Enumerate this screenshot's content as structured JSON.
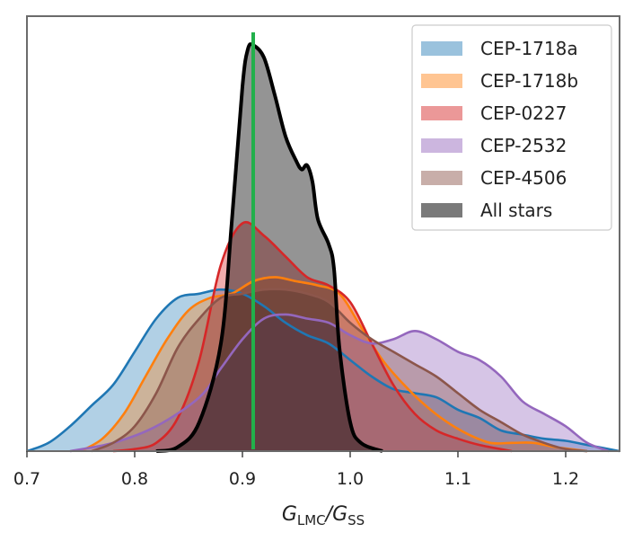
{
  "chart_data": {
    "type": "area",
    "title": "",
    "xlabel": "G",
    "xlabel_sub1": "LMC",
    "xlabel_mid": "/G",
    "xlabel_sub2": "SS",
    "ylabel": "",
    "xlim": [
      0.7,
      1.25
    ],
    "ylim": [
      0,
      1.05
    ],
    "x_ticks": [
      0.7,
      0.8,
      0.9,
      1.0,
      1.1,
      1.2
    ],
    "x_tick_labels": [
      "0.7",
      "0.8",
      "0.9",
      "1.0",
      "1.1",
      "1.2"
    ],
    "grid": false,
    "legend_position": "top-right",
    "reference_line": {
      "x": 0.91,
      "color": "#22b04b"
    },
    "series": [
      {
        "name": "CEP-1718a",
        "color": "#1f77b4",
        "fill_opacity": 0.35,
        "points": [
          [
            0.7,
            0.0
          ],
          [
            0.72,
            0.02
          ],
          [
            0.74,
            0.06
          ],
          [
            0.76,
            0.11
          ],
          [
            0.78,
            0.16
          ],
          [
            0.8,
            0.24
          ],
          [
            0.82,
            0.32
          ],
          [
            0.84,
            0.37
          ],
          [
            0.86,
            0.38
          ],
          [
            0.88,
            0.39
          ],
          [
            0.9,
            0.38
          ],
          [
            0.92,
            0.35
          ],
          [
            0.94,
            0.31
          ],
          [
            0.96,
            0.28
          ],
          [
            0.98,
            0.26
          ],
          [
            1.0,
            0.22
          ],
          [
            1.02,
            0.18
          ],
          [
            1.04,
            0.15
          ],
          [
            1.06,
            0.14
          ],
          [
            1.08,
            0.13
          ],
          [
            1.1,
            0.1
          ],
          [
            1.12,
            0.08
          ],
          [
            1.14,
            0.05
          ],
          [
            1.16,
            0.04
          ],
          [
            1.18,
            0.03
          ],
          [
            1.2,
            0.025
          ],
          [
            1.22,
            0.015
          ],
          [
            1.25,
            0.0
          ]
        ]
      },
      {
        "name": "CEP-1718b",
        "color": "#ff7f0e",
        "fill_opacity": 0.35,
        "points": [
          [
            0.75,
            0.0
          ],
          [
            0.77,
            0.03
          ],
          [
            0.79,
            0.09
          ],
          [
            0.81,
            0.18
          ],
          [
            0.83,
            0.27
          ],
          [
            0.85,
            0.34
          ],
          [
            0.87,
            0.37
          ],
          [
            0.89,
            0.38
          ],
          [
            0.91,
            0.41
          ],
          [
            0.93,
            0.42
          ],
          [
            0.95,
            0.41
          ],
          [
            0.97,
            0.4
          ],
          [
            0.99,
            0.38
          ],
          [
            1.01,
            0.3
          ],
          [
            1.03,
            0.22
          ],
          [
            1.05,
            0.16
          ],
          [
            1.07,
            0.11
          ],
          [
            1.09,
            0.07
          ],
          [
            1.11,
            0.04
          ],
          [
            1.13,
            0.02
          ],
          [
            1.15,
            0.02
          ],
          [
            1.17,
            0.02
          ],
          [
            1.19,
            0.01
          ],
          [
            1.22,
            0.0
          ]
        ]
      },
      {
        "name": "CEP-0227",
        "color": "#d62728",
        "fill_opacity": 0.38,
        "points": [
          [
            0.78,
            0.0
          ],
          [
            0.8,
            0.005
          ],
          [
            0.82,
            0.02
          ],
          [
            0.84,
            0.08
          ],
          [
            0.86,
            0.22
          ],
          [
            0.88,
            0.45
          ],
          [
            0.9,
            0.55
          ],
          [
            0.92,
            0.52
          ],
          [
            0.94,
            0.47
          ],
          [
            0.96,
            0.42
          ],
          [
            0.98,
            0.4
          ],
          [
            1.0,
            0.36
          ],
          [
            1.02,
            0.26
          ],
          [
            1.04,
            0.16
          ],
          [
            1.06,
            0.09
          ],
          [
            1.08,
            0.05
          ],
          [
            1.1,
            0.03
          ],
          [
            1.12,
            0.015
          ],
          [
            1.15,
            0.0
          ]
        ]
      },
      {
        "name": "CEP-2532",
        "color": "#9467bd",
        "fill_opacity": 0.38,
        "points": [
          [
            0.74,
            0.0
          ],
          [
            0.78,
            0.02
          ],
          [
            0.82,
            0.06
          ],
          [
            0.86,
            0.13
          ],
          [
            0.88,
            0.2
          ],
          [
            0.9,
            0.27
          ],
          [
            0.92,
            0.32
          ],
          [
            0.94,
            0.33
          ],
          [
            0.96,
            0.32
          ],
          [
            0.98,
            0.31
          ],
          [
            1.0,
            0.28
          ],
          [
            1.02,
            0.26
          ],
          [
            1.04,
            0.27
          ],
          [
            1.06,
            0.29
          ],
          [
            1.08,
            0.27
          ],
          [
            1.1,
            0.24
          ],
          [
            1.12,
            0.22
          ],
          [
            1.14,
            0.18
          ],
          [
            1.16,
            0.12
          ],
          [
            1.18,
            0.09
          ],
          [
            1.2,
            0.06
          ],
          [
            1.22,
            0.02
          ],
          [
            1.24,
            0.0
          ]
        ]
      },
      {
        "name": "CEP-4506",
        "color": "#8c564b",
        "fill_opacity": 0.38,
        "points": [
          [
            0.76,
            0.0
          ],
          [
            0.78,
            0.02
          ],
          [
            0.8,
            0.06
          ],
          [
            0.82,
            0.14
          ],
          [
            0.84,
            0.25
          ],
          [
            0.86,
            0.32
          ],
          [
            0.88,
            0.37
          ],
          [
            0.9,
            0.38
          ],
          [
            0.92,
            0.39
          ],
          [
            0.94,
            0.39
          ],
          [
            0.96,
            0.38
          ],
          [
            0.98,
            0.36
          ],
          [
            1.0,
            0.31
          ],
          [
            1.02,
            0.27
          ],
          [
            1.04,
            0.24
          ],
          [
            1.06,
            0.21
          ],
          [
            1.08,
            0.18
          ],
          [
            1.1,
            0.14
          ],
          [
            1.12,
            0.1
          ],
          [
            1.14,
            0.07
          ],
          [
            1.16,
            0.04
          ],
          [
            1.18,
            0.02
          ],
          [
            1.2,
            0.005
          ],
          [
            1.22,
            0.0
          ]
        ]
      },
      {
        "name": "All stars",
        "color": "#000000",
        "fill_opacity": 0.42,
        "points": [
          [
            0.82,
            0.0
          ],
          [
            0.84,
            0.01
          ],
          [
            0.86,
            0.07
          ],
          [
            0.88,
            0.26
          ],
          [
            0.89,
            0.55
          ],
          [
            0.9,
            0.88
          ],
          [
            0.905,
            0.97
          ],
          [
            0.91,
            0.98
          ],
          [
            0.92,
            0.95
          ],
          [
            0.93,
            0.86
          ],
          [
            0.94,
            0.76
          ],
          [
            0.95,
            0.7
          ],
          [
            0.955,
            0.68
          ],
          [
            0.96,
            0.69
          ],
          [
            0.965,
            0.65
          ],
          [
            0.97,
            0.56
          ],
          [
            0.98,
            0.5
          ],
          [
            0.985,
            0.44
          ],
          [
            0.99,
            0.25
          ],
          [
            1.0,
            0.07
          ],
          [
            1.01,
            0.02
          ],
          [
            1.03,
            0.0
          ]
        ]
      }
    ],
    "legend_entries": [
      "CEP-1718a",
      "CEP-1718b",
      "CEP-0227",
      "CEP-2532",
      "CEP-4506",
      "All stars"
    ]
  }
}
